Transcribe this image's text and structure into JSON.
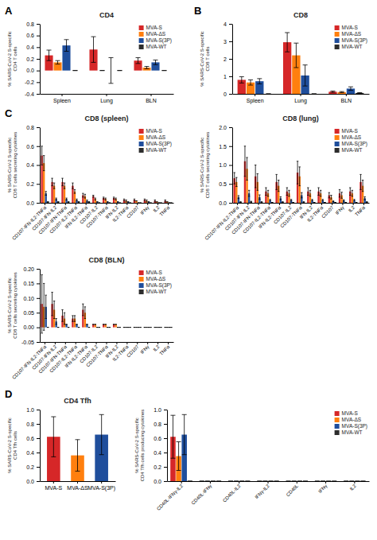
{
  "chart_data": [
    {
      "type": "bar",
      "title": "CD4",
      "ylabel": "% SARS-CoV-2 S-specific\nCD4 T cells",
      "categories": [
        "Spleen",
        "Lung",
        "BLN"
      ],
      "series": [
        {
          "name": "MVA-S",
          "color": "#d62728",
          "values": [
            0.26,
            0.36,
            0.17
          ],
          "errors": [
            0.09,
            0.22,
            0.05
          ]
        },
        {
          "name": "MVA-ΔS",
          "color": "#ff7f0e",
          "values": [
            0.14,
            0.0,
            0.05
          ],
          "errors": [
            0.03,
            0.0,
            0.02
          ]
        },
        {
          "name": "MVA-S(3P)",
          "color": "#1f4e9c",
          "values": [
            0.43,
            0.0,
            0.14
          ],
          "errors": [
            0.1,
            0.22,
            0.04
          ]
        },
        {
          "name": "MVA-WT",
          "color": "#2d2d2d",
          "values": [
            0.0,
            0.0,
            0.0
          ],
          "errors": [
            0.0,
            0.0,
            0.0
          ]
        }
      ],
      "ylim": [
        -0.4,
        0.8
      ],
      "yticks": [
        -0.4,
        -0.2,
        {
          "value": 0.0,
          "label": "0.0"
        },
        0.2,
        0.4,
        0.6,
        0.8
      ],
      "legend": "upper right",
      "annotations": [
        "A"
      ]
    },
    {
      "type": "bar",
      "title": "CD8",
      "ylabel": "% SARS-CoV-2 S-specific\nCD8 T cells",
      "categories": [
        "Spleen",
        "Lung",
        "BLN"
      ],
      "series": [
        {
          "name": "MVA-S",
          "color": "#d62728",
          "values": [
            0.8,
            2.95,
            0.12
          ],
          "errors": [
            0.18,
            0.55,
            0.04
          ]
        },
        {
          "name": "MVA-ΔS",
          "color": "#ff7f0e",
          "values": [
            0.65,
            2.2,
            0.1
          ],
          "errors": [
            0.15,
            0.7,
            0.03
          ]
        },
        {
          "name": "MVA-S(3P)",
          "color": "#1f4e9c",
          "values": [
            0.72,
            1.05,
            0.3
          ],
          "errors": [
            0.15,
            0.6,
            0.1
          ]
        },
        {
          "name": "MVA-WT",
          "color": "#2d2d2d",
          "values": [
            0.0,
            0.0,
            0.05
          ],
          "errors": [
            0.0,
            0.0,
            0.02
          ]
        }
      ],
      "ylim": [
        0,
        4
      ],
      "yticks": [
        0,
        1,
        2,
        3,
        4
      ],
      "legend": "upper right",
      "annotations": [
        "B"
      ]
    },
    {
      "type": "bar",
      "title": "CD8 (spleen)",
      "ylabel": "% SARS-CoV-2 S-specific\nCD8 T cells secreting cytokines",
      "categories": [
        "CD107-IFN-IL2-TNFα",
        "CD107-IFN-IL2",
        "CD107-IFN-TNFα",
        "CD107-IL2-TNFα",
        "IFN-IL2-TNFα",
        "CD107-IL2",
        "CD107-TNFα",
        "IFN-IL2",
        "IL2-TNFα",
        "CD107",
        "IFNγ",
        "IL2",
        "TNFα"
      ],
      "series": [
        {
          "name": "MVA-S",
          "color": "#d62728",
          "values": [
            0.5,
            0.22,
            0.22,
            0.18,
            0.08,
            0.07,
            0.05,
            0.05,
            0.03,
            0.03,
            0.03,
            0.02,
            0.02
          ],
          "errors": [
            0.1,
            0.04,
            0.04,
            0.03,
            0.02,
            0.01,
            0.01,
            0.01,
            0.01,
            0.01,
            0.01,
            0.01,
            0.01
          ]
        },
        {
          "name": "MVA-ΔS",
          "color": "#ff7f0e",
          "values": [
            0.42,
            0.18,
            0.18,
            0.12,
            0.07,
            0.04,
            0.04,
            0.04,
            0.02,
            0.02,
            0.02,
            0.01,
            0.01
          ],
          "errors": [
            0.08,
            0.03,
            0.03,
            0.02,
            0.02,
            0.01,
            0.01,
            0.01,
            0.01,
            0.0,
            0.01,
            0.0,
            0.0
          ]
        },
        {
          "name": "MVA-S(3P)",
          "color": "#1f4e9c",
          "values": [
            0.1,
            0.04,
            0.04,
            0.03,
            0.02,
            0.01,
            0.01,
            0.01,
            0.01,
            0.0,
            0.01,
            0.0,
            0.0
          ],
          "errors": [
            0.02,
            0.01,
            0.01,
            0.01,
            0.01,
            0.0,
            0.0,
            0.0,
            0.0,
            0.0,
            0.0,
            0.0,
            0.0
          ]
        },
        {
          "name": "MVA-WT",
          "color": "#2d2d2d",
          "values": [
            0.01,
            0.01,
            0.01,
            0.01,
            0.01,
            0.0,
            0.0,
            0.0,
            0.0,
            0.0,
            0.0,
            0.0,
            0.0
          ],
          "errors": [
            0.0,
            0.0,
            0.0,
            0.0,
            0.0,
            0.0,
            0.0,
            0.0,
            0.0,
            0.0,
            0.0,
            0.0,
            0.0
          ]
        }
      ],
      "ylim": [
        0,
        0.8
      ],
      "yticks": [
        {
          "value": 0.0,
          "label": "0.0"
        },
        0.2,
        0.4,
        0.6,
        0.8
      ],
      "legend": "upper right",
      "annotations": [
        "C"
      ]
    },
    {
      "type": "bar",
      "title": "CD8 (lung)",
      "ylabel": "% SARS-CoV-2 S-specific\nCD8 T cells secreting cytokines",
      "categories": [
        "CD107-IFN-IL2-TNFα",
        "CD107-IFN-IL2",
        "CD107-IFN-TNFα",
        "CD107-IL2-TNFα",
        "IFN-IL2-TNFα",
        "CD107-IL2",
        "CD107-TNFα",
        "IFN-IL2",
        "IL2-TNFα",
        "CD107",
        "IFNγ",
        "IL2",
        "TNFα"
      ],
      "series": [
        {
          "name": "MVA-S",
          "color": "#d62728",
          "values": [
            0.65,
            1.1,
            0.7,
            0.3,
            0.55,
            0.3,
            0.8,
            0.3,
            0.3,
            0.2,
            0.25,
            0.3,
            0.55
          ],
          "errors": [
            0.15,
            0.4,
            0.3,
            0.1,
            0.2,
            0.1,
            0.3,
            0.1,
            0.1,
            0.07,
            0.1,
            0.1,
            0.2
          ]
        },
        {
          "name": "MVA-ΔS",
          "color": "#ff7f0e",
          "values": [
            0.55,
            0.9,
            0.55,
            0.25,
            0.45,
            0.25,
            0.7,
            0.25,
            0.25,
            0.15,
            0.2,
            0.25,
            0.45
          ],
          "errors": [
            0.12,
            0.3,
            0.22,
            0.08,
            0.15,
            0.08,
            0.25,
            0.08,
            0.08,
            0.05,
            0.08,
            0.08,
            0.15
          ]
        },
        {
          "name": "MVA-S(3P)",
          "color": "#1f4e9c",
          "values": [
            0.15,
            0.25,
            0.15,
            0.07,
            0.12,
            0.07,
            0.2,
            0.07,
            0.07,
            0.04,
            0.06,
            0.07,
            0.12
          ],
          "errors": [
            0.04,
            0.08,
            0.06,
            0.02,
            0.04,
            0.02,
            0.07,
            0.02,
            0.02,
            0.01,
            0.02,
            0.02,
            0.04
          ]
        },
        {
          "name": "MVA-WT",
          "color": "#2d2d2d",
          "values": [
            0.02,
            0.03,
            0.02,
            0.01,
            0.02,
            0.01,
            0.02,
            0.01,
            0.01,
            0.01,
            0.01,
            0.01,
            0.02
          ],
          "errors": [
            0.01,
            0.01,
            0.01,
            0.0,
            0.01,
            0.0,
            0.01,
            0.0,
            0.0,
            0.0,
            0.0,
            0.0,
            0.01
          ]
        }
      ],
      "ylim": [
        0,
        2.0
      ],
      "yticks": [
        {
          "value": 0.0,
          "label": "0.0"
        },
        0.5,
        {
          "value": 1.0,
          "label": "1.0"
        },
        1.5,
        {
          "value": 2.0,
          "label": "2.0"
        }
      ],
      "legend": "upper right"
    },
    {
      "type": "bar",
      "title": "CD8 (BLN)",
      "ylabel": "% SARS-CoV-2 S-specific\nCD8 T cells secreting cytokines",
      "categories": [
        "CD107-IFN-IL2-TNFα",
        "CD107-IFN-IL2",
        "CD107-IFN-TNFα",
        "CD107-IL2-TNFα",
        "IFN-IL2-TNFα",
        "CD107-IL2",
        "CD107-TNFα",
        "IFN-IL2",
        "IL2-TNFα",
        "CD107",
        "IFNγ",
        "IL2",
        "TNFα"
      ],
      "series": [
        {
          "name": "MVA-S",
          "color": "#d62728",
          "values": [
            0.08,
            0.08,
            0.04,
            0.03,
            0.06,
            0.01,
            0.01,
            0.01,
            0.0,
            0.0,
            0.0,
            0.0,
            0.0
          ],
          "errors": [
            0.1,
            0.04,
            0.02,
            0.01,
            0.02,
            0.0,
            0.0,
            0.0,
            0.0,
            0.0,
            0.0,
            0.0,
            0.0
          ]
        },
        {
          "name": "MVA-ΔS",
          "color": "#ff7f0e",
          "values": [
            0.07,
            0.06,
            0.03,
            0.03,
            0.05,
            0.01,
            0.01,
            0.01,
            0.0,
            0.0,
            0.0,
            0.0,
            0.0
          ],
          "errors": [
            0.08,
            0.03,
            0.02,
            0.01,
            0.02,
            0.0,
            0.0,
            0.0,
            0.0,
            0.0,
            0.0,
            0.0,
            0.0
          ]
        },
        {
          "name": "MVA-S(3P)",
          "color": "#1f4e9c",
          "values": [
            0.07,
            0.02,
            0.01,
            0.01,
            0.01,
            0.0,
            0.0,
            0.0,
            0.0,
            0.0,
            0.0,
            0.0,
            0.0
          ],
          "errors": [
            0.04,
            0.01,
            0.0,
            0.0,
            0.0,
            0.0,
            0.0,
            0.0,
            0.0,
            0.0,
            0.0,
            0.0,
            0.0
          ]
        },
        {
          "name": "MVA-WT",
          "color": "#2d2d2d",
          "values": [
            0.0,
            0.0,
            0.0,
            0.0,
            0.0,
            0.0,
            0.0,
            0.0,
            0.0,
            0.0,
            0.0,
            0.0,
            0.0
          ],
          "errors": [
            0.0,
            0.0,
            0.0,
            0.0,
            0.0,
            0.0,
            0.0,
            0.0,
            0.0,
            0.0,
            0.0,
            0.0,
            0.0
          ]
        }
      ],
      "ylim": [
        -0.05,
        0.2
      ],
      "yticks": [
        -0.05,
        {
          "value": 0.0,
          "label": "0.00"
        },
        0.05,
        {
          "value": 0.1,
          "label": "0.10"
        },
        0.15,
        {
          "value": 0.2,
          "label": "0.20"
        }
      ],
      "legend": "upper right"
    },
    {
      "type": "bar",
      "title": "CD4 Tfh",
      "ylabel": "% SARS-CoV-2 S-specific\nCD4 Tfh cells",
      "categories": [
        "MVA-S",
        "MVA-ΔS",
        "MVA-S(3P)"
      ],
      "values": [
        0.62,
        0.36,
        0.65
      ],
      "errors": [
        0.28,
        0.22,
        0.28
      ],
      "colors": [
        "#d62728",
        "#ff7f0e",
        "#1f4e9c"
      ],
      "ylim": [
        0,
        1.0
      ],
      "yticks": [
        {
          "value": 0.0,
          "label": "0.0"
        },
        0.2,
        0.4,
        0.6,
        0.8,
        {
          "value": 1.0,
          "label": "1.0"
        }
      ],
      "annotations": [
        "D"
      ]
    },
    {
      "type": "bar",
      "ylabel": "% SARS-CoV-2 S-specific\nCD4 Tfh cells producing cytokines",
      "categories": [
        "CD40L-IFNγ-IL2",
        "CD40L-IFNγ",
        "CD40L-IL2",
        "IFNγ-IL2",
        "CD40L",
        "IFNγ",
        "IL2"
      ],
      "series": [
        {
          "name": "MVA-S",
          "color": "#d62728",
          "values": [
            0.62,
            0.0,
            0.0,
            0.0,
            0.0,
            0.0,
            0.0
          ],
          "errors": [
            0.3,
            0.0,
            0.0,
            0.0,
            0.0,
            0.0,
            0.0
          ]
        },
        {
          "name": "MVA-ΔS",
          "color": "#ff7f0e",
          "values": [
            0.35,
            0.0,
            0.0,
            0.0,
            0.0,
            0.0,
            0.0
          ],
          "errors": [
            0.2,
            0.0,
            0.0,
            0.0,
            0.0,
            0.0,
            0.0
          ]
        },
        {
          "name": "MVA-S(3P)",
          "color": "#1f4e9c",
          "values": [
            0.65,
            0.0,
            0.0,
            0.0,
            0.0,
            0.0,
            0.0
          ],
          "errors": [
            0.28,
            0.0,
            0.0,
            0.0,
            0.0,
            0.0,
            0.0
          ]
        },
        {
          "name": "MVA-WT",
          "color": "#2d2d2d",
          "values": [
            0.0,
            0.0,
            0.0,
            0.0,
            0.0,
            0.0,
            0.0
          ],
          "errors": [
            0.0,
            0.0,
            0.0,
            0.0,
            0.0,
            0.0,
            0.0
          ]
        }
      ],
      "ylim": [
        0,
        1.0
      ],
      "yticks": [
        {
          "value": 0.0,
          "label": "0.0"
        },
        0.2,
        0.4,
        0.6,
        0.8,
        {
          "value": 1.0,
          "label": "1.0"
        }
      ],
      "legend": "upper right"
    }
  ]
}
